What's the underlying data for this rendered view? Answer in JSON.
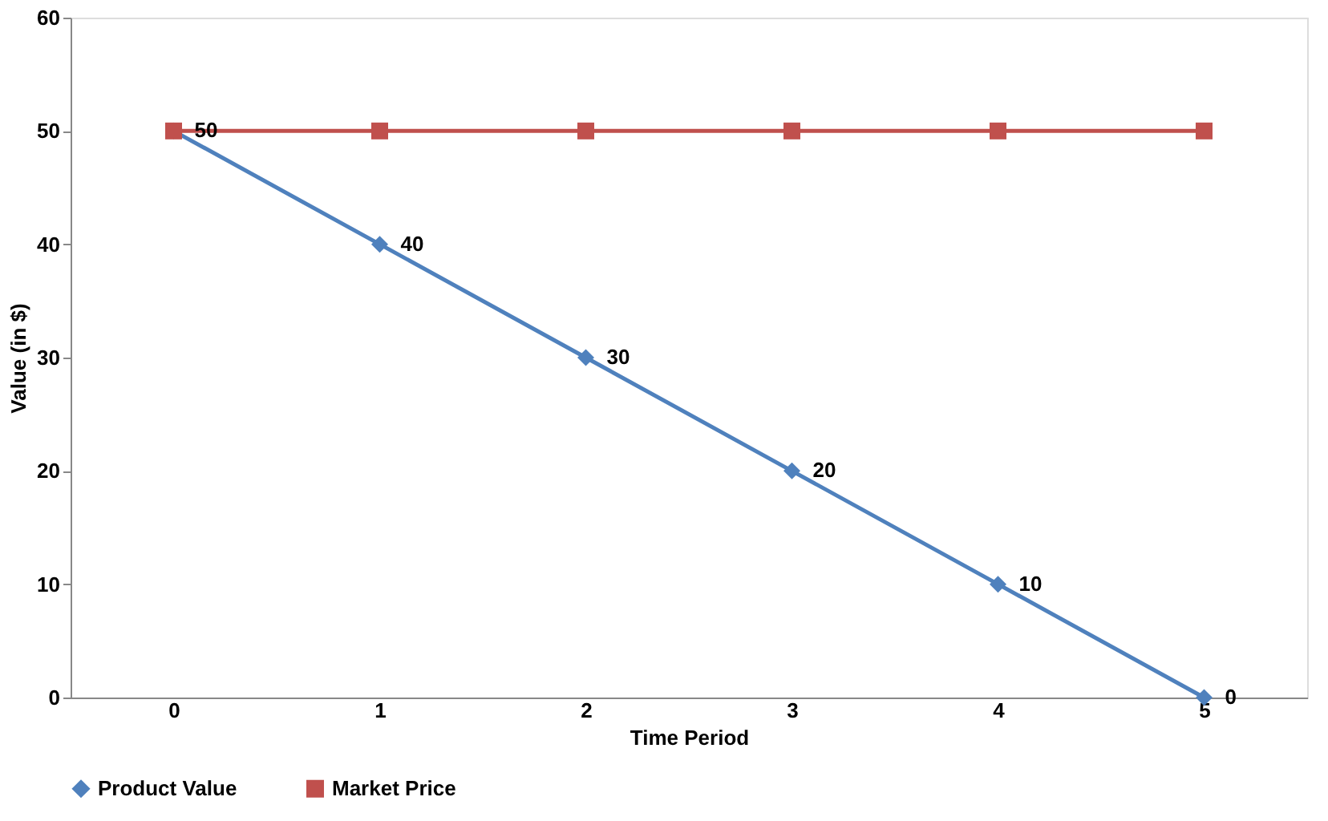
{
  "chart_data": {
    "type": "line",
    "xlabel": "Time Period",
    "ylabel": "Value (in $)",
    "categories": [
      "0",
      "1",
      "2",
      "3",
      "4",
      "5"
    ],
    "series": [
      {
        "name": "Product Value",
        "color": "#4f81bd",
        "marker": "diamond",
        "values": [
          50,
          40,
          30,
          20,
          10,
          0
        ],
        "value_labels": [
          "50",
          "40",
          "30",
          "20",
          "10",
          "0"
        ]
      },
      {
        "name": "Market Price",
        "color": "#c0504d",
        "marker": "square",
        "values": [
          50,
          50,
          50,
          50,
          50,
          50
        ]
      }
    ],
    "ylim": [
      0,
      60
    ],
    "yticks": [
      0,
      10,
      20,
      30,
      40,
      50,
      60
    ],
    "grid": false,
    "legend": "bottom",
    "line_style": "solid"
  }
}
